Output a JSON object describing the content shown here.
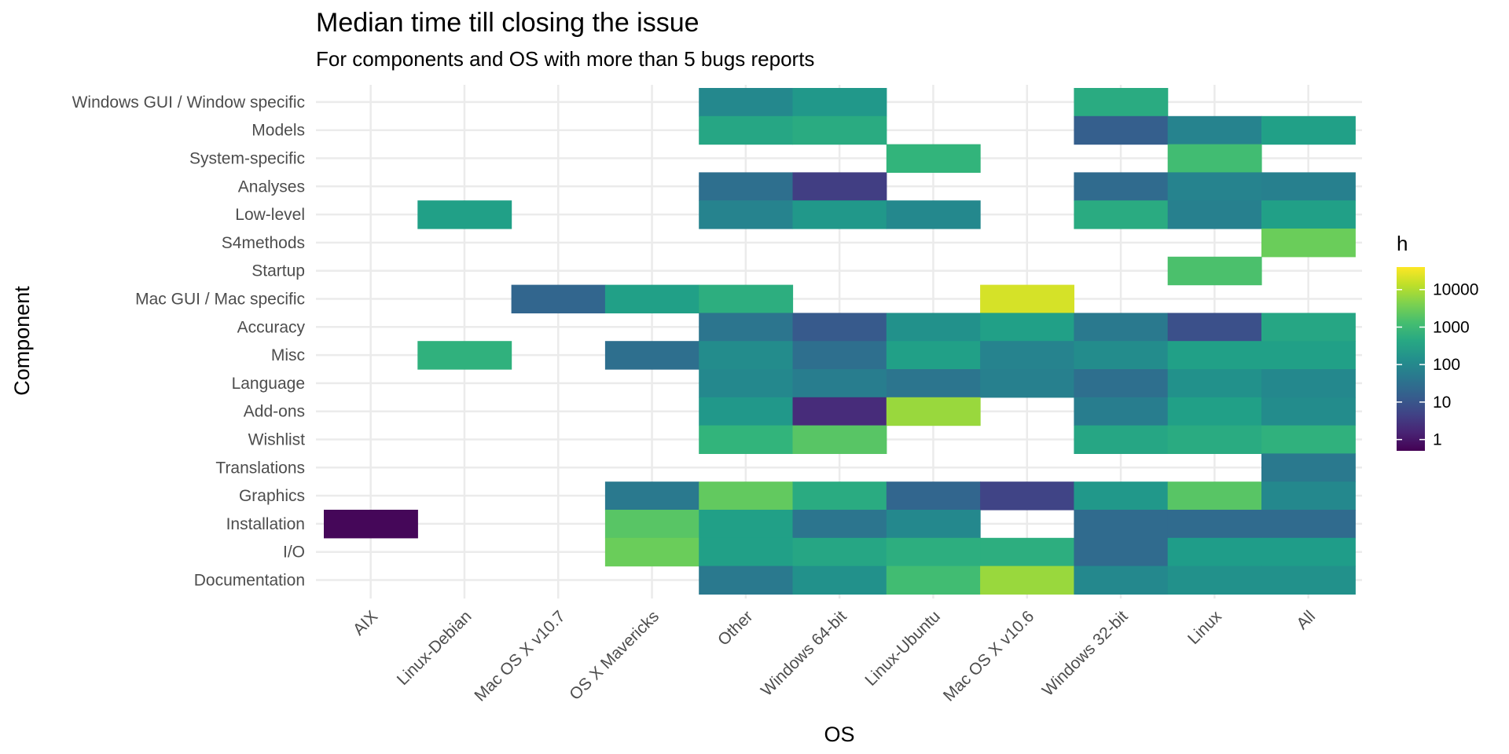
{
  "chart_data": {
    "type": "heatmap",
    "title": "Median time till closing the issue",
    "subtitle": "For components and OS with more than 5 bugs reports",
    "xlabel": "OS",
    "ylabel": "Component",
    "x_categories": [
      "AIX",
      "Linux-Debian",
      "Mac OS X v10.7",
      "OS X Mavericks",
      "Other",
      "Windows 64-bit",
      "Linux-Ubuntu",
      "Mac OS X v10.6",
      "Windows 32-bit",
      "Linux",
      "All"
    ],
    "y_categories": [
      "Windows GUI / Window specific",
      "Models",
      "System-specific",
      "Analyses",
      "Low-level",
      "S4methods",
      "Startup",
      "Mac GUI / Mac specific",
      "Accuracy",
      "Misc",
      "Language",
      "Add-ons",
      "Wishlist",
      "Translations",
      "Graphics",
      "Installation",
      "I/O",
      "Documentation"
    ],
    "color_scale": {
      "name": "h",
      "palette": "viridis",
      "scale": "log10",
      "range": [
        0.5,
        40000
      ],
      "breaks": [
        1,
        10,
        100,
        1000,
        10000
      ],
      "break_labels": [
        "1",
        "10",
        "100",
        "1000",
        "10000"
      ]
    },
    "grid": true,
    "legend_position": "right",
    "cells": [
      {
        "x": "Other",
        "y": "Windows GUI / Window specific",
        "value": 100
      },
      {
        "x": "Windows 64-bit",
        "y": "Windows GUI / Window specific",
        "value": 200
      },
      {
        "x": "Windows 32-bit",
        "y": "Windows GUI / Window specific",
        "value": 500
      },
      {
        "x": "Other",
        "y": "Models",
        "value": 400
      },
      {
        "x": "Windows 64-bit",
        "y": "Models",
        "value": 500
      },
      {
        "x": "Windows 32-bit",
        "y": "Models",
        "value": 15
      },
      {
        "x": "Linux",
        "y": "Models",
        "value": 80
      },
      {
        "x": "All",
        "y": "Models",
        "value": 300
      },
      {
        "x": "Linux-Ubuntu",
        "y": "System-specific",
        "value": 800
      },
      {
        "x": "Linux",
        "y": "System-specific",
        "value": 1200
      },
      {
        "x": "Other",
        "y": "Analyses",
        "value": 30
      },
      {
        "x": "Windows 64-bit",
        "y": "Analyses",
        "value": 4
      },
      {
        "x": "Windows 32-bit",
        "y": "Analyses",
        "value": 25
      },
      {
        "x": "Linux",
        "y": "Analyses",
        "value": 80
      },
      {
        "x": "All",
        "y": "Analyses",
        "value": 70
      },
      {
        "x": "Linux-Debian",
        "y": "Low-level",
        "value": 300
      },
      {
        "x": "Other",
        "y": "Low-level",
        "value": 80
      },
      {
        "x": "Windows 64-bit",
        "y": "Low-level",
        "value": 200
      },
      {
        "x": "Linux-Ubuntu",
        "y": "Low-level",
        "value": 100
      },
      {
        "x": "Windows 32-bit",
        "y": "Low-level",
        "value": 500
      },
      {
        "x": "Linux",
        "y": "Low-level",
        "value": 70
      },
      {
        "x": "All",
        "y": "Low-level",
        "value": 300
      },
      {
        "x": "All",
        "y": "S4methods",
        "value": 3000
      },
      {
        "x": "Linux",
        "y": "Startup",
        "value": 1500
      },
      {
        "x": "Mac OS X v10.7",
        "y": "Mac GUI / Mac specific",
        "value": 20
      },
      {
        "x": "OS X Mavericks",
        "y": "Mac GUI / Mac specific",
        "value": 300
      },
      {
        "x": "Other",
        "y": "Mac GUI / Mac specific",
        "value": 600
      },
      {
        "x": "Mac OS X v10.6",
        "y": "Mac GUI / Mac specific",
        "value": 20000
      },
      {
        "x": "Other",
        "y": "Accuracy",
        "value": 40
      },
      {
        "x": "Windows 64-bit",
        "y": "Accuracy",
        "value": 12
      },
      {
        "x": "Linux-Ubuntu",
        "y": "Accuracy",
        "value": 150
      },
      {
        "x": "Mac OS X v10.6",
        "y": "Accuracy",
        "value": 300
      },
      {
        "x": "Windows 32-bit",
        "y": "Accuracy",
        "value": 50
      },
      {
        "x": "Linux",
        "y": "Accuracy",
        "value": 8
      },
      {
        "x": "All",
        "y": "Accuracy",
        "value": 400
      },
      {
        "x": "Linux-Debian",
        "y": "Misc",
        "value": 700
      },
      {
        "x": "OS X Mavericks",
        "y": "Misc",
        "value": 30
      },
      {
        "x": "Other",
        "y": "Misc",
        "value": 120
      },
      {
        "x": "Windows 64-bit",
        "y": "Misc",
        "value": 30
      },
      {
        "x": "Linux-Ubuntu",
        "y": "Misc",
        "value": 300
      },
      {
        "x": "Mac OS X v10.6",
        "y": "Misc",
        "value": 80
      },
      {
        "x": "Windows 32-bit",
        "y": "Misc",
        "value": 120
      },
      {
        "x": "Linux",
        "y": "Misc",
        "value": 300
      },
      {
        "x": "All",
        "y": "Misc",
        "value": 300
      },
      {
        "x": "Other",
        "y": "Language",
        "value": 100
      },
      {
        "x": "Windows 64-bit",
        "y": "Language",
        "value": 60
      },
      {
        "x": "Linux-Ubuntu",
        "y": "Language",
        "value": 40
      },
      {
        "x": "Mac OS X v10.6",
        "y": "Language",
        "value": 70
      },
      {
        "x": "Windows 32-bit",
        "y": "Language",
        "value": 30
      },
      {
        "x": "Linux",
        "y": "Language",
        "value": 150
      },
      {
        "x": "All",
        "y": "Language",
        "value": 100
      },
      {
        "x": "Other",
        "y": "Add-ons",
        "value": 200
      },
      {
        "x": "Windows 64-bit",
        "y": "Add-ons",
        "value": 2
      },
      {
        "x": "Linux-Ubuntu",
        "y": "Add-ons",
        "value": 7000
      },
      {
        "x": "Windows 32-bit",
        "y": "Add-ons",
        "value": 60
      },
      {
        "x": "Linux",
        "y": "Add-ons",
        "value": 300
      },
      {
        "x": "All",
        "y": "Add-ons",
        "value": 120
      },
      {
        "x": "Other",
        "y": "Wishlist",
        "value": 800
      },
      {
        "x": "Windows 64-bit",
        "y": "Wishlist",
        "value": 2000
      },
      {
        "x": "Windows 32-bit",
        "y": "Wishlist",
        "value": 400
      },
      {
        "x": "Linux",
        "y": "Wishlist",
        "value": 500
      },
      {
        "x": "All",
        "y": "Wishlist",
        "value": 700
      },
      {
        "x": "All",
        "y": "Translations",
        "value": 50
      },
      {
        "x": "OS X Mavericks",
        "y": "Graphics",
        "value": 50
      },
      {
        "x": "Other",
        "y": "Graphics",
        "value": 2500
      },
      {
        "x": "Windows 64-bit",
        "y": "Graphics",
        "value": 500
      },
      {
        "x": "Linux-Ubuntu",
        "y": "Graphics",
        "value": 20
      },
      {
        "x": "Mac OS X v10.6",
        "y": "Graphics",
        "value": 5
      },
      {
        "x": "Windows 32-bit",
        "y": "Graphics",
        "value": 200
      },
      {
        "x": "Linux",
        "y": "Graphics",
        "value": 2000
      },
      {
        "x": "All",
        "y": "Graphics",
        "value": 100
      },
      {
        "x": "AIX",
        "y": "Installation",
        "value": 0.6
      },
      {
        "x": "OS X Mavericks",
        "y": "Installation",
        "value": 2000
      },
      {
        "x": "Other",
        "y": "Installation",
        "value": 300
      },
      {
        "x": "Windows 64-bit",
        "y": "Installation",
        "value": 40
      },
      {
        "x": "Linux-Ubuntu",
        "y": "Installation",
        "value": 100
      },
      {
        "x": "Windows 32-bit",
        "y": "Installation",
        "value": 25
      },
      {
        "x": "Linux",
        "y": "Installation",
        "value": 25
      },
      {
        "x": "All",
        "y": "Installation",
        "value": 25
      },
      {
        "x": "OS X Mavericks",
        "y": "I/O",
        "value": 3000
      },
      {
        "x": "Other",
        "y": "I/O",
        "value": 300
      },
      {
        "x": "Windows 64-bit",
        "y": "I/O",
        "value": 400
      },
      {
        "x": "Linux-Ubuntu",
        "y": "I/O",
        "value": 600
      },
      {
        "x": "Mac OS X v10.6",
        "y": "I/O",
        "value": 600
      },
      {
        "x": "Windows 32-bit",
        "y": "I/O",
        "value": 25
      },
      {
        "x": "Linux",
        "y": "I/O",
        "value": 250
      },
      {
        "x": "All",
        "y": "I/O",
        "value": 250
      },
      {
        "x": "Other",
        "y": "Documentation",
        "value": 50
      },
      {
        "x": "Windows 64-bit",
        "y": "Documentation",
        "value": 150
      },
      {
        "x": "Linux-Ubuntu",
        "y": "Documentation",
        "value": 1200
      },
      {
        "x": "Mac OS X v10.6",
        "y": "Documentation",
        "value": 7000
      },
      {
        "x": "Windows 32-bit",
        "y": "Documentation",
        "value": 100
      },
      {
        "x": "Linux",
        "y": "Documentation",
        "value": 150
      },
      {
        "x": "All",
        "y": "Documentation",
        "value": 150
      }
    ]
  }
}
